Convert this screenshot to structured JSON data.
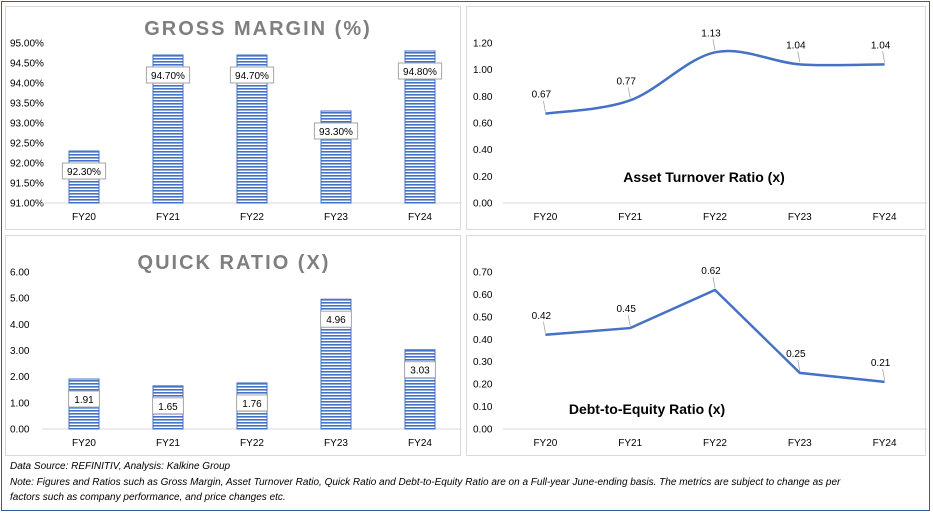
{
  "footer": {
    "source": "Data Source: REFINITIV, Analysis: Kalkine Group",
    "note_line1": "Note: Figures and Ratios such as Gross Margin, Asset Turnover Ratio, Quick Ratio and Debt-to-Equity Ratio are on a Full-year June-ending basis. The metrics are subject to change as per",
    "note_line2": "factors such as company performance, and price changes etc."
  },
  "colors": {
    "bar_fill": "#4472c4",
    "line": "#4472c4",
    "title_gray": "#7f7f7f",
    "frame": "#2f5f9e"
  },
  "chart_data": [
    {
      "type": "bar",
      "title": "GROSS MARGIN (%)",
      "categories": [
        "FY20",
        "FY21",
        "FY22",
        "FY23",
        "FY24"
      ],
      "values": [
        92.3,
        94.7,
        94.7,
        93.3,
        94.8
      ],
      "value_labels": [
        "92.30%",
        "94.70%",
        "94.70%",
        "93.30%",
        "94.80%"
      ],
      "ylim": [
        91,
        95
      ],
      "yticks": [
        "91.00%",
        "91.50%",
        "92.00%",
        "92.50%",
        "93.00%",
        "93.50%",
        "94.00%",
        "94.50%",
        "95.00%"
      ]
    },
    {
      "type": "line",
      "title": "Asset Turnover Ratio (x)",
      "categories": [
        "FY20",
        "FY21",
        "FY22",
        "FY23",
        "FY24"
      ],
      "values": [
        0.67,
        0.77,
        1.13,
        1.04,
        1.04
      ],
      "value_labels": [
        "0.67",
        "0.77",
        "1.13",
        "1.04",
        "1.04"
      ],
      "ylim": [
        0,
        1.2
      ],
      "yticks": [
        "0.00",
        "0.20",
        "0.40",
        "0.60",
        "0.80",
        "1.00",
        "1.20"
      ],
      "smooth": true
    },
    {
      "type": "bar",
      "title": "QUICK RATIO (X)",
      "categories": [
        "FY20",
        "FY21",
        "FY22",
        "FY23",
        "FY24"
      ],
      "values": [
        1.91,
        1.65,
        1.76,
        4.96,
        3.03
      ],
      "value_labels": [
        "1.91",
        "1.65",
        "1.76",
        "4.96",
        "3.03"
      ],
      "ylim": [
        0,
        6
      ],
      "yticks": [
        "0.00",
        "1.00",
        "2.00",
        "3.00",
        "4.00",
        "5.00",
        "6.00"
      ]
    },
    {
      "type": "line",
      "title": "Debt-to-Equity Ratio (x)",
      "categories": [
        "FY20",
        "FY21",
        "FY22",
        "FY23",
        "FY24"
      ],
      "values": [
        0.42,
        0.45,
        0.62,
        0.25,
        0.21
      ],
      "value_labels": [
        "0.42",
        "0.45",
        "0.62",
        "0.25",
        "0.21"
      ],
      "ylim": [
        0,
        0.7
      ],
      "yticks": [
        "0.00",
        "0.10",
        "0.20",
        "0.30",
        "0.40",
        "0.50",
        "0.60",
        "0.70"
      ],
      "smooth": false
    }
  ]
}
